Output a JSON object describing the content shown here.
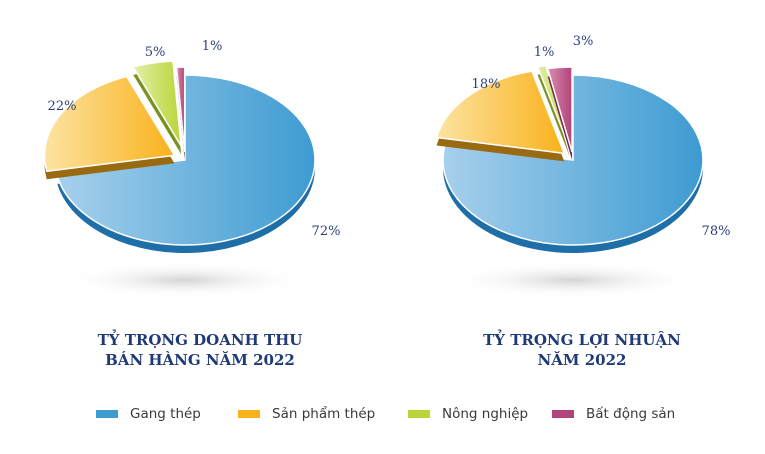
{
  "colors": {
    "gang_thep": "#3d9bd2",
    "san_pham_thep": "#f9b21b",
    "nong_nghiep": "#b9d53a",
    "bat_dong_san": "#b1447a",
    "title": "#1f3a78",
    "label": "#2c3e7a"
  },
  "chart_data": [
    {
      "type": "pie",
      "title_lines": [
        "TỶ TRỌNG DOANH THU",
        "BÁN HÀNG NĂM 2022"
      ],
      "categories": [
        "Gang thép",
        "Sản phẩm thép",
        "Nông nghiệp",
        "Bất động sản"
      ],
      "values": [
        72,
        22,
        5,
        1
      ],
      "labels": [
        "72%",
        "22%",
        "5%",
        "1%"
      ]
    },
    {
      "type": "pie",
      "title_lines": [
        "TỶ TRỌNG LỢI NHUẬN",
        "NĂM 2022"
      ],
      "categories": [
        "Gang thép",
        "Sản phẩm thép",
        "Nông nghiệp",
        "Bất động sản"
      ],
      "values": [
        78,
        18,
        1,
        3
      ],
      "labels": [
        "78%",
        "18%",
        "1%",
        "3%"
      ]
    }
  ],
  "legend": [
    {
      "label": "Gang thép",
      "color": "#3d9bd2"
    },
    {
      "label": "Sản phẩm thép",
      "color": "#f9b21b"
    },
    {
      "label": "Nông nghiệp",
      "color": "#b9d53a"
    },
    {
      "label": "Bất động sản",
      "color": "#b1447a"
    }
  ]
}
